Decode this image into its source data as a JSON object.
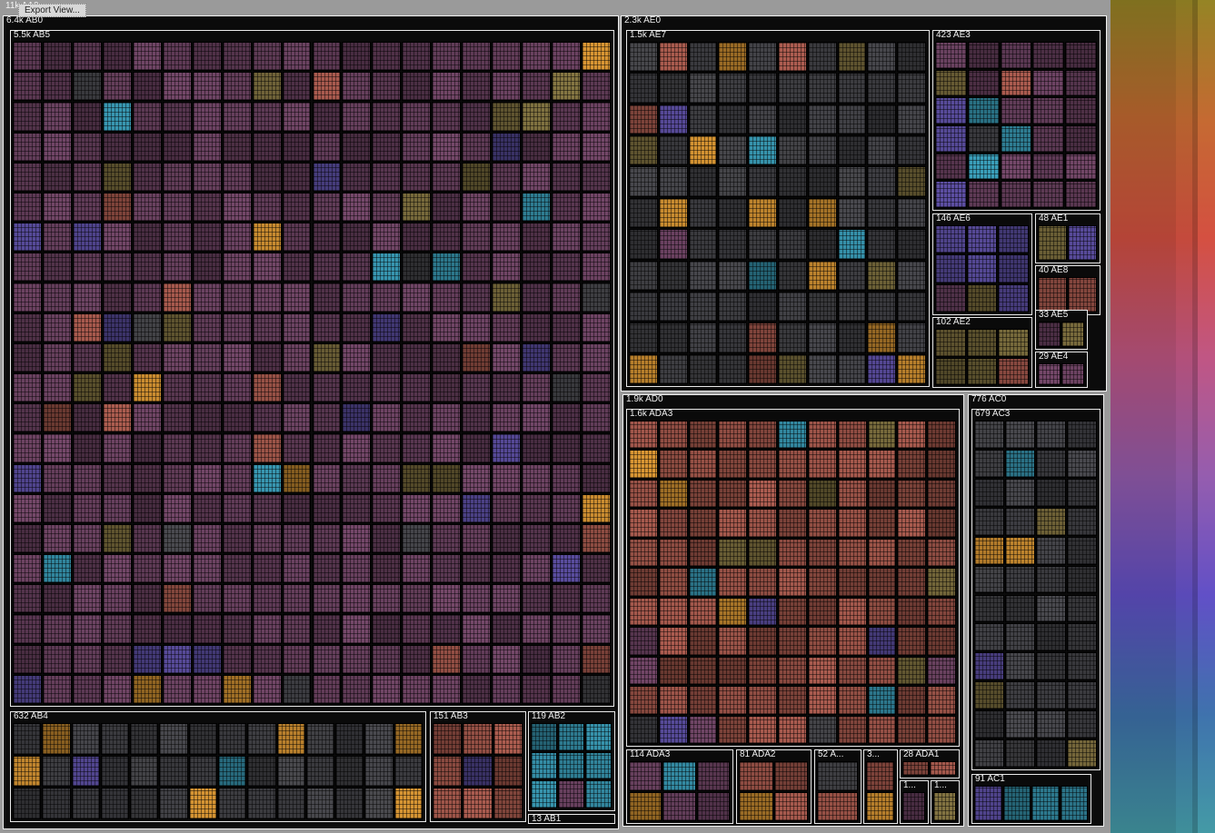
{
  "menu": {
    "export_label": "Export View..."
  },
  "root": {
    "label": "11k AA0"
  },
  "nodes": [
    {
      "id": "AB0",
      "label": "6.4k AB0",
      "level": 1
    },
    {
      "id": "AB5",
      "label": "5.5k AB5",
      "level": 2
    },
    {
      "id": "AB4",
      "label": "632 AB4",
      "level": 2
    },
    {
      "id": "AB3",
      "label": "151 AB3",
      "level": 2
    },
    {
      "id": "AB2",
      "label": "119 AB2",
      "level": 2
    },
    {
      "id": "AB1",
      "label": "13 AB1",
      "level": 2
    },
    {
      "id": "AE0",
      "label": "2.3k AE0",
      "level": 1
    },
    {
      "id": "AE7",
      "label": "1.5k AE7",
      "level": 2
    },
    {
      "id": "AE3",
      "label": "423 AE3",
      "level": 2
    },
    {
      "id": "AE6",
      "label": "146 AE6",
      "level": 2
    },
    {
      "id": "AE1",
      "label": "48 AE1",
      "level": 2
    },
    {
      "id": "AE8",
      "label": "40 AE8",
      "level": 2
    },
    {
      "id": "AE2",
      "label": "102 AE2",
      "level": 2
    },
    {
      "id": "AE5",
      "label": "33 AE5",
      "level": 2
    },
    {
      "id": "AE4",
      "label": "29 AE4",
      "level": 2
    },
    {
      "id": "AD0",
      "label": "1.9k AD0",
      "level": 1
    },
    {
      "id": "ADA3_big",
      "label": "1.6k ADA3",
      "level": 2
    },
    {
      "id": "ADA3_small",
      "label": "114 ADA3",
      "level": 2
    },
    {
      "id": "ADA2",
      "label": "81 ADA2",
      "level": 2
    },
    {
      "id": "ADA_52",
      "label": "52 A...",
      "level": 2
    },
    {
      "id": "ADA_3",
      "label": "3...",
      "level": 2
    },
    {
      "id": "ADA1",
      "label": "28 ADA1",
      "level": 2
    },
    {
      "id": "ADA_1a",
      "label": "1...",
      "level": 3
    },
    {
      "id": "ADA_1b",
      "label": "1...",
      "level": 3
    },
    {
      "id": "AC0",
      "label": "776 AC0",
      "level": 1
    },
    {
      "id": "AC3",
      "label": "679 AC3",
      "level": 2
    },
    {
      "id": "AC1",
      "label": "91 AC1",
      "level": 2
    }
  ],
  "palette": {
    "plum": "#5e3a55",
    "rust": "#8a4a40",
    "teal": "#2f7f95",
    "slate": "#3b3b3f",
    "indigo": "#4a3f82",
    "amber": "#b07a2a",
    "olive": "#6a5e35"
  },
  "colorbar": [
    "#8a7a22",
    "#b6622e",
    "#c44a3c",
    "#b2507a",
    "#8a56a2",
    "#5a4ab8",
    "#3a6aa0",
    "#3f8f9a"
  ]
}
